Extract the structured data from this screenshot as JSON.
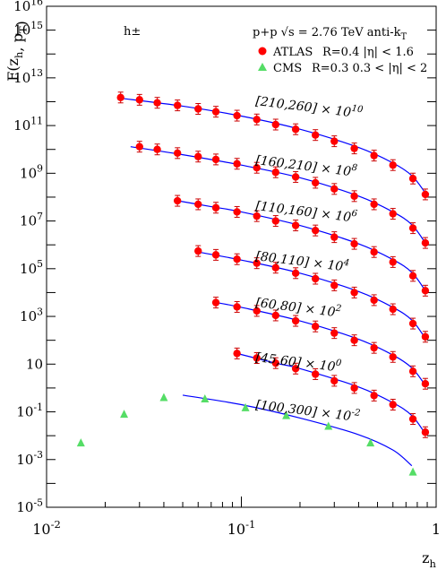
{
  "chart_data": {
    "type": "scatter",
    "xscale": "log",
    "yscale": "log",
    "xlim": [
      0.01,
      1
    ],
    "ylim": [
      1e-05,
      1e+16
    ],
    "xlabel": "z_h",
    "ylabel": "F(z_h, p_T)",
    "corner_label": "h±",
    "header": {
      "system": "p+p",
      "energy": "√s = 2.76 TeV",
      "algorithm": "anti-kT"
    },
    "x_ticks": [
      {
        "v": 0.01,
        "label": "10^-2"
      },
      {
        "v": 0.1,
        "label": "10^-1"
      },
      {
        "v": 1,
        "label": "1"
      }
    ],
    "y_ticks": [
      {
        "v": 1e-05,
        "label": "10^-5"
      },
      {
        "v": 0.001,
        "label": "10^-3"
      },
      {
        "v": 0.1,
        "label": "10^-1"
      },
      {
        "v": 10,
        "label": "10"
      },
      {
        "v": 1000.0,
        "label": "10^3"
      },
      {
        "v": 100000.0,
        "label": "10^5"
      },
      {
        "v": 10000000.0,
        "label": "10^7"
      },
      {
        "v": 1000000000.0,
        "label": "10^9"
      },
      {
        "v": 100000000000.0,
        "label": "10^11"
      },
      {
        "v": 10000000000000.0,
        "label": "10^13"
      },
      {
        "v": 1000000000000000.0,
        "label": "10^15"
      },
      {
        "v": 1e+16,
        "label": "10^16"
      }
    ],
    "legend": [
      {
        "name": "ATLAS",
        "detail": "R=0.4 |η| < 1.6",
        "marker": "circle",
        "color": "#ff0000"
      },
      {
        "name": "CMS",
        "detail": "R=0.3 0.3 < |η| < 2",
        "marker": "triangle",
        "color": "#55dd66"
      }
    ],
    "line_color": "#0000ff",
    "series": [
      {
        "name": "[210,260] × 10^10",
        "atlas_x": [
          0.024,
          0.03,
          0.037,
          0.047,
          0.06,
          0.074,
          0.095,
          0.12,
          0.15,
          0.19,
          0.24,
          0.3,
          0.38,
          0.48,
          0.6,
          0.76,
          0.88
        ],
        "atlas_y": [
          1500000000000.0,
          1200000000000.0,
          900000000000.0,
          700000000000.0,
          500000000000.0,
          380000000000.0,
          260000000000.0,
          180000000000.0,
          110000000000.0,
          70000000000.0,
          40000000000.0,
          22000000000.0,
          11000000000.0,
          5500000000.0,
          2200000000.0,
          600000000.0,
          130000000.0
        ],
        "model_x": [
          0.024,
          0.05,
          0.1,
          0.2,
          0.4,
          0.6,
          0.75,
          0.88
        ],
        "model_y": [
          1400000000000.0,
          650000000000.0,
          250000000000.0,
          70000000000.0,
          12000000000.0,
          2700000000.0,
          800000000.0,
          150000000.0
        ]
      },
      {
        "name": "[160,210] × 10^8",
        "atlas_x": [
          0.03,
          0.037,
          0.047,
          0.06,
          0.074,
          0.095,
          0.12,
          0.15,
          0.19,
          0.24,
          0.3,
          0.38,
          0.48,
          0.6,
          0.76,
          0.88
        ],
        "atlas_y": [
          13000000000.0,
          10000000000.0,
          7000000000.0,
          5000000000.0,
          3800000000.0,
          2500000000.0,
          1700000000.0,
          1100000000.0,
          700000000.0,
          400000000.0,
          220000000.0,
          110000000.0,
          50000000.0,
          20000000.0,
          5000000.0,
          1200000.0
        ],
        "model_x": [
          0.027,
          0.05,
          0.1,
          0.2,
          0.4,
          0.6,
          0.75,
          0.88
        ],
        "model_y": [
          13000000000.0,
          6000000000.0,
          2200000000.0,
          650000000.0,
          110000000.0,
          24000000.0,
          7000000.0,
          1200000.0
        ]
      },
      {
        "name": "[110,160] × 10^6",
        "atlas_x": [
          0.047,
          0.06,
          0.074,
          0.095,
          0.12,
          0.15,
          0.19,
          0.24,
          0.3,
          0.38,
          0.48,
          0.6,
          0.76,
          0.88
        ],
        "atlas_y": [
          70000000.0,
          50000000.0,
          36000000.0,
          24000000.0,
          16000000.0,
          10000000.0,
          6500000.0,
          4000000.0,
          2100000.0,
          1100000.0,
          500000.0,
          190000.0,
          50000.0,
          12000.0
        ],
        "model_x": [
          0.045,
          0.07,
          0.1,
          0.2,
          0.4,
          0.6,
          0.75,
          0.88
        ],
        "model_y": [
          75000000.0,
          40000000.0,
          24000000.0,
          6500000.0,
          1100000.0,
          240000.0,
          70000.0,
          12000.0
        ]
      },
      {
        "name": "[80,110] × 10^4",
        "atlas_x": [
          0.06,
          0.074,
          0.095,
          0.12,
          0.15,
          0.19,
          0.24,
          0.3,
          0.38,
          0.48,
          0.6,
          0.76,
          0.88
        ],
        "atlas_y": [
          550000.0,
          380000.0,
          250000.0,
          170000.0,
          110000.0,
          65000.0,
          38000.0,
          20000.0,
          10000.0,
          4800.0,
          2000.0,
          500.0,
          140.0
        ],
        "model_x": [
          0.06,
          0.1,
          0.2,
          0.4,
          0.6,
          0.75,
          0.88
        ],
        "model_y": [
          500000.0,
          230000.0,
          65000.0,
          11000.0,
          2400.0,
          700.0,
          120.0
        ]
      },
      {
        "name": "[60,80] × 10^2",
        "atlas_x": [
          0.074,
          0.095,
          0.12,
          0.15,
          0.19,
          0.24,
          0.3,
          0.38,
          0.48,
          0.6,
          0.76,
          0.88
        ],
        "atlas_y": [
          3800.0,
          2500.0,
          1700.0,
          1100.0,
          650.0,
          380.0,
          200.0,
          100.0,
          48,
          20,
          5,
          1.5
        ],
        "model_x": [
          0.072,
          0.1,
          0.2,
          0.4,
          0.6,
          0.75,
          0.88
        ],
        "model_y": [
          4000.0,
          2400.0,
          650.0,
          110.0,
          24,
          7,
          1.3
        ]
      },
      {
        "name": "[45,60] × 10^0",
        "atlas_x": [
          0.095,
          0.12,
          0.15,
          0.19,
          0.24,
          0.3,
          0.38,
          0.48,
          0.6,
          0.76,
          0.88
        ],
        "atlas_y": [
          28,
          18,
          11,
          6.5,
          3.8,
          2,
          1,
          0.48,
          0.2,
          0.05,
          0.014
        ],
        "model_x": [
          0.095,
          0.15,
          0.2,
          0.4,
          0.6,
          0.75,
          0.88
        ],
        "model_y": [
          28,
          11,
          6.5,
          1.1,
          0.24,
          0.07,
          0.012
        ]
      },
      {
        "name": "[100,300] × 10^-2",
        "cms_x": [
          0.015,
          0.025,
          0.04,
          0.065,
          0.105,
          0.17,
          0.28,
          0.46,
          0.76
        ],
        "cms_y": [
          0.005,
          0.08,
          0.4,
          0.35,
          0.15,
          0.07,
          0.025,
          0.005,
          0.0003
        ],
        "model_x": [
          0.05,
          0.1,
          0.2,
          0.4,
          0.6,
          0.75
        ],
        "model_y": [
          0.5,
          0.2,
          0.055,
          0.011,
          0.0025,
          0.00055
        ]
      }
    ]
  }
}
